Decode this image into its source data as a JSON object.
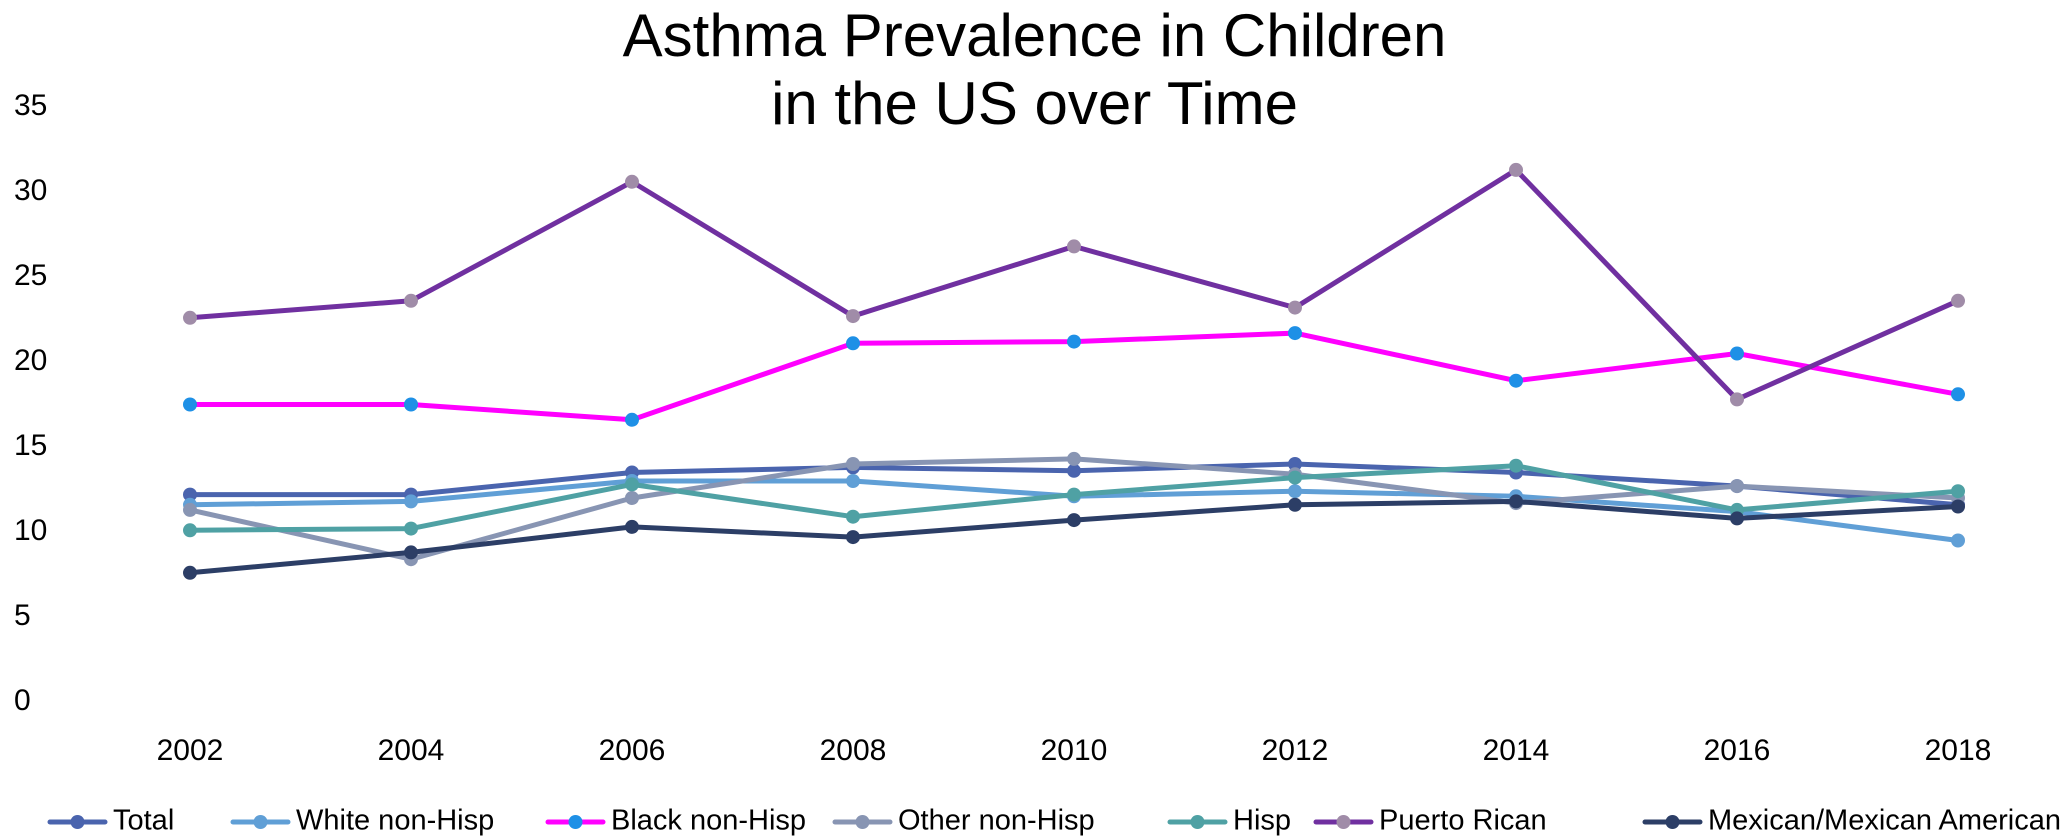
{
  "chart_data": {
    "type": "line",
    "title_lines": [
      "Asthma Prevalence  in Children",
      "in the US over Time"
    ],
    "xlabel": "",
    "ylabel": "",
    "x": [
      "2002",
      "2004",
      "2006",
      "2008",
      "2010",
      "2012",
      "2014",
      "2016",
      "2018"
    ],
    "yticks": [
      0,
      5,
      10,
      15,
      20,
      25,
      30,
      35
    ],
    "ylim": [
      0,
      35
    ],
    "grid": false,
    "legend_position": "bottom",
    "series": [
      {
        "name": "Total",
        "line_color": "#4A64AE",
        "marker_color": "#4A64AE",
        "values": [
          12.2,
          12.2,
          13.5,
          13.8,
          13.6,
          14.0,
          13.5,
          12.7,
          11.6
        ]
      },
      {
        "name": "White non-Hisp",
        "line_color": "#609FD6",
        "marker_color": "#609FD6",
        "values": [
          11.6,
          11.8,
          13.0,
          13.0,
          12.1,
          12.4,
          12.1,
          11.2,
          9.5
        ]
      },
      {
        "name": "Black non-Hisp",
        "line_color": "#FF00FF",
        "marker_color": "#1E90E6",
        "values": [
          17.5,
          17.5,
          16.6,
          21.1,
          21.2,
          21.7,
          18.9,
          20.5,
          18.1
        ]
      },
      {
        "name": "Other non-Hisp",
        "line_color": "#8895B3",
        "marker_color": "#8895B3",
        "values": [
          11.3,
          8.4,
          12.0,
          14.0,
          14.3,
          13.4,
          11.7,
          12.7,
          12.0
        ]
      },
      {
        "name": "Hisp",
        "line_color": "#4FA1A4",
        "marker_color": "#4FA1A4",
        "values": [
          10.1,
          10.2,
          12.8,
          10.9,
          12.2,
          13.2,
          13.9,
          11.3,
          12.4
        ]
      },
      {
        "name": "Puerto Rican",
        "line_color": "#7030A0",
        "marker_color": "#A08CA8",
        "values": [
          22.6,
          23.6,
          30.6,
          22.7,
          26.8,
          23.2,
          31.3,
          17.8,
          23.6
        ]
      },
      {
        "name": "Mexican/Mexican American",
        "line_color": "#2C3E66",
        "marker_color": "#2C3E66",
        "values": [
          7.6,
          8.8,
          10.3,
          9.7,
          10.7,
          11.6,
          11.8,
          10.8,
          11.5
        ]
      }
    ]
  }
}
